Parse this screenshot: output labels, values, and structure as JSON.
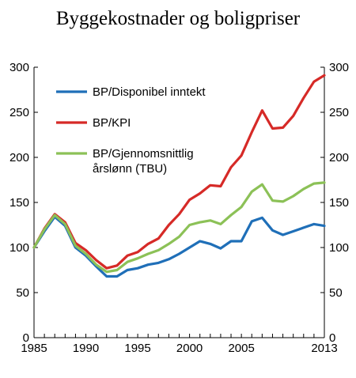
{
  "chart_data": {
    "type": "line",
    "title": "Byggekostnader og boligpriser",
    "xlim": [
      1985,
      2013
    ],
    "ylim": [
      0,
      300
    ],
    "y_ticks": [
      0,
      50,
      100,
      150,
      200,
      250,
      300
    ],
    "x_tick_labels": [
      "1985",
      "1990",
      "1995",
      "2000",
      "2005",
      "2013"
    ],
    "x_tick_positions": [
      1985,
      1990,
      1995,
      2000,
      2005,
      2013
    ],
    "grid": false,
    "legend_position": "top-left",
    "series": [
      {
        "name": "BP/Disponibel inntekt",
        "color": "#1f6fb8",
        "x": [
          1985,
          1986,
          1987,
          1988,
          1989,
          1990,
          1991,
          1992,
          1993,
          1994,
          1995,
          1996,
          1997,
          1998,
          1999,
          2000,
          2001,
          2002,
          2003,
          2004,
          2005,
          2006,
          2007,
          2008,
          2009,
          2010,
          2011,
          2012,
          2013
        ],
        "values": [
          100,
          118,
          134,
          124,
          100,
          91,
          79,
          68,
          68,
          75,
          77,
          81,
          83,
          87,
          93,
          100,
          107,
          104,
          99,
          107,
          107,
          129,
          133,
          119,
          114,
          118,
          122,
          126,
          124
        ]
      },
      {
        "name": "BP/KPI",
        "color": "#d62a27",
        "x": [
          1985,
          1986,
          1987,
          1988,
          1989,
          1990,
          1991,
          1992,
          1993,
          1994,
          1995,
          1996,
          1997,
          1998,
          1999,
          2000,
          2001,
          2002,
          2003,
          2004,
          2005,
          2006,
          2007,
          2008,
          2009,
          2010,
          2011,
          2012,
          2013
        ],
        "values": [
          100,
          121,
          137,
          128,
          105,
          97,
          86,
          77,
          80,
          91,
          95,
          104,
          110,
          125,
          137,
          153,
          160,
          169,
          168,
          189,
          202,
          228,
          252,
          232,
          233,
          246,
          266,
          284,
          291
        ]
      },
      {
        "name_lines": [
          "BP/Gjennomsnittlig",
          "årslønn (TBU)"
        ],
        "color": "#8cc157",
        "x": [
          1985,
          1986,
          1987,
          1988,
          1989,
          1990,
          1991,
          1992,
          1993,
          1994,
          1995,
          1996,
          1997,
          1998,
          1999,
          2000,
          2001,
          2002,
          2003,
          2004,
          2005,
          2006,
          2007,
          2008,
          2009,
          2010,
          2011,
          2012,
          2013
        ],
        "values": [
          100,
          120,
          136,
          126,
          102,
          93,
          81,
          73,
          75,
          84,
          88,
          93,
          97,
          104,
          112,
          125,
          128,
          130,
          126,
          136,
          145,
          162,
          170,
          152,
          151,
          157,
          165,
          171,
          172
        ]
      }
    ]
  }
}
